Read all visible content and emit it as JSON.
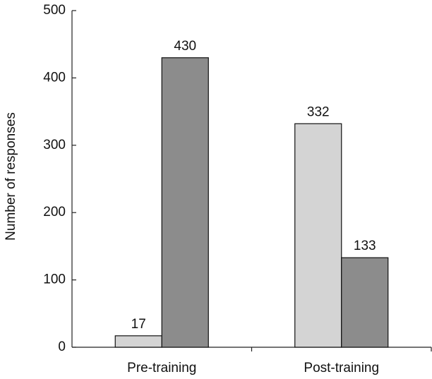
{
  "chart_data": {
    "type": "bar",
    "y_label": "Number of responses",
    "categories": [
      "Pre-training",
      "Post-training"
    ],
    "series": [
      {
        "color": "#d4d4d4",
        "values": [
          17,
          332
        ]
      },
      {
        "color": "#8c8c8c",
        "values": [
          430,
          133
        ]
      }
    ],
    "ylim": [
      0,
      500
    ],
    "yticks": [
      0,
      100,
      200,
      300,
      400,
      500
    ],
    "grid": false
  }
}
